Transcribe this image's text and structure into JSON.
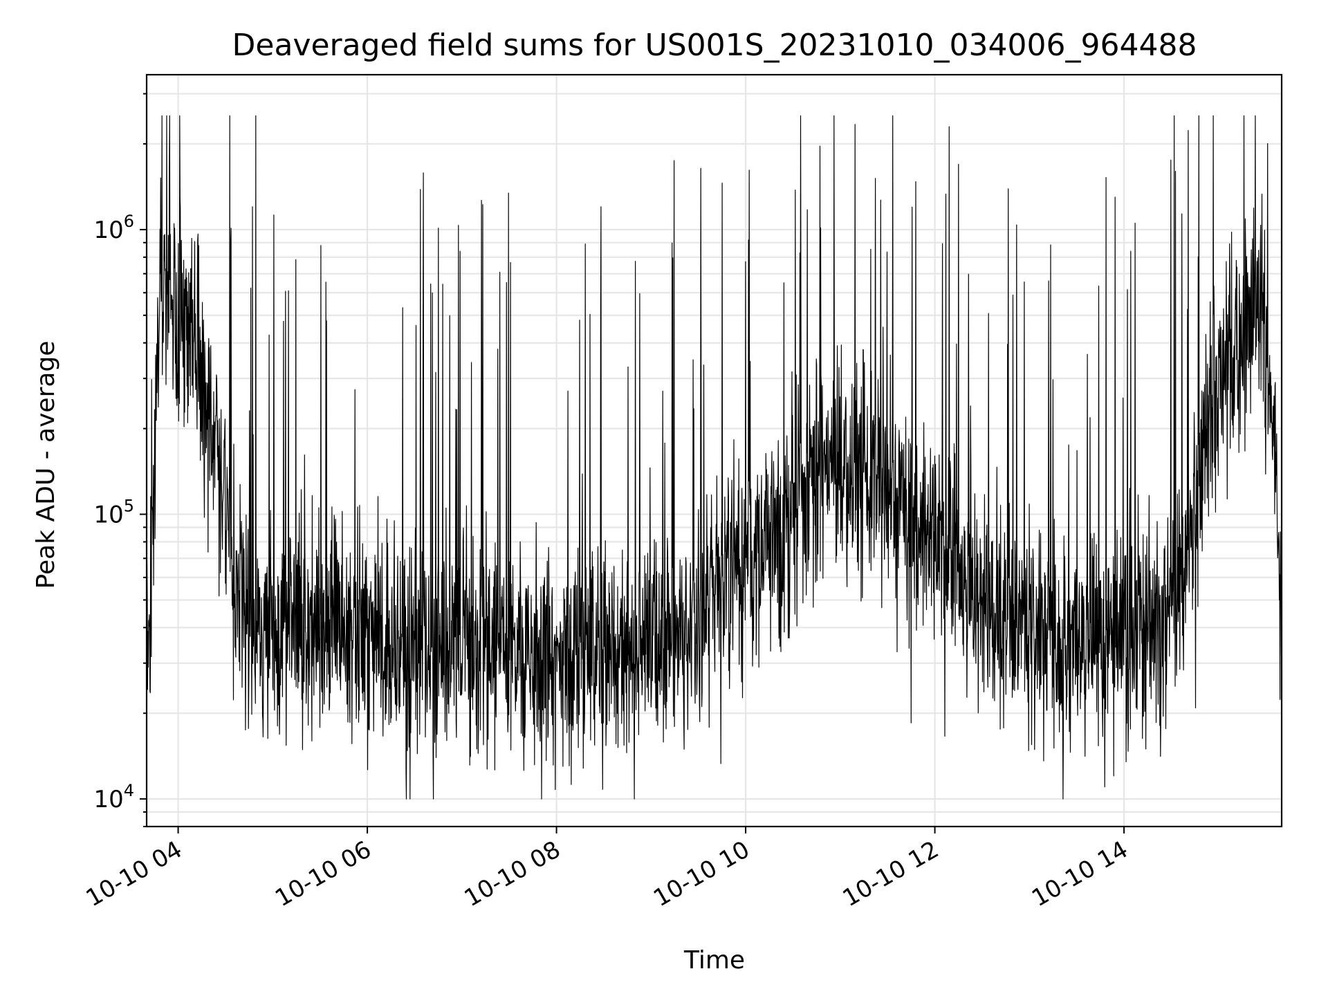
{
  "chart_data": {
    "type": "line",
    "title": "Deaveraged field sums for US001S_20231010_034006_964488",
    "xlabel": "Time",
    "ylabel": "Peak ADU - average",
    "yscale": "log",
    "xlim": [
      "2023-10-10 03:40",
      "2023-10-10 15:40"
    ],
    "ylim": [
      8000,
      3500000
    ],
    "grid": true,
    "line_color": "#000000",
    "x_ticks": [
      {
        "t": "2023-10-10 04:00",
        "label": "10-10 04"
      },
      {
        "t": "2023-10-10 06:00",
        "label": "10-10 06"
      },
      {
        "t": "2023-10-10 08:00",
        "label": "10-10 08"
      },
      {
        "t": "2023-10-10 10:00",
        "label": "10-10 10"
      },
      {
        "t": "2023-10-10 12:00",
        "label": "10-10 12"
      },
      {
        "t": "2023-10-10 14:00",
        "label": "10-10 14"
      }
    ],
    "y_ticks": [
      {
        "value": 10000,
        "base": "10",
        "exp": "4"
      },
      {
        "value": 100000,
        "base": "10",
        "exp": "5"
      },
      {
        "value": 1000000,
        "base": "10",
        "exp": "6"
      }
    ],
    "series": [
      {
        "x": [
          "2023-10-10 03:40",
          "2023-10-10 03:42",
          "2023-10-10 03:45",
          "2023-10-10 03:48",
          "2023-10-10 03:50",
          "2023-10-10 03:52",
          "2023-10-10 03:55",
          "2023-10-10 03:58",
          "2023-10-10 04:00",
          "2023-10-10 04:05",
          "2023-10-10 04:10",
          "2023-10-10 04:15",
          "2023-10-10 04:20",
          "2023-10-10 04:25",
          "2023-10-10 04:30",
          "2023-10-10 04:35",
          "2023-10-10 04:40",
          "2023-10-10 04:50",
          "2023-10-10 05:00",
          "2023-10-10 05:15",
          "2023-10-10 05:30",
          "2023-10-10 05:45",
          "2023-10-10 06:00",
          "2023-10-10 06:20",
          "2023-10-10 06:40",
          "2023-10-10 07:00",
          "2023-10-10 07:20",
          "2023-10-10 07:40",
          "2023-10-10 08:00",
          "2023-10-10 08:20",
          "2023-10-10 08:40",
          "2023-10-10 09:00",
          "2023-10-10 09:20",
          "2023-10-10 09:40",
          "2023-10-10 10:00",
          "2023-10-10 10:20",
          "2023-10-10 10:40",
          "2023-10-10 11:00",
          "2023-10-10 11:20",
          "2023-10-10 11:40",
          "2023-10-10 12:00",
          "2023-10-10 12:20",
          "2023-10-10 12:40",
          "2023-10-10 13:00",
          "2023-10-10 13:20",
          "2023-10-10 13:40",
          "2023-10-10 14:00",
          "2023-10-10 14:15",
          "2023-10-10 14:30",
          "2023-10-10 14:45",
          "2023-10-10 14:55",
          "2023-10-10 15:05",
          "2023-10-10 15:15",
          "2023-10-10 15:25",
          "2023-10-10 15:32",
          "2023-10-10 15:37",
          "2023-10-10 15:40"
        ],
        "y": [
          30000,
          40000,
          150000,
          600000,
          850000,
          650000,
          550000,
          480000,
          450000,
          500000,
          420000,
          300000,
          180000,
          150000,
          110000,
          70000,
          45000,
          38000,
          40000,
          42000,
          40000,
          38000,
          40000,
          34000,
          33000,
          35000,
          34000,
          32000,
          30000,
          30000,
          32000,
          33000,
          38000,
          55000,
          65000,
          90000,
          130000,
          150000,
          140000,
          100000,
          85000,
          60000,
          45000,
          36000,
          33000,
          35000,
          38000,
          40000,
          42000,
          90000,
          200000,
          350000,
          450000,
          600000,
          300000,
          120000,
          35000
        ]
      }
    ]
  }
}
